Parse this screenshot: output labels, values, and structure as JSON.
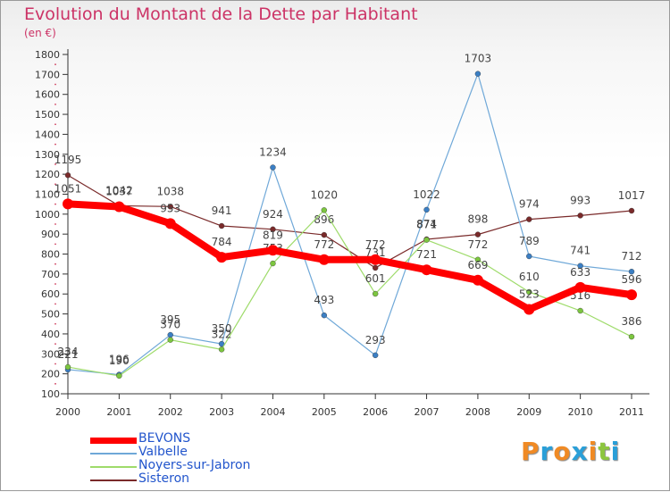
{
  "title": "Evolution du Montant de la Dette par Habitant",
  "unit": "(en €)",
  "logo_text": "Proxiti",
  "logo_colors": [
    "#f08a24",
    "#2a9fd8",
    "#f08a24",
    "#2a9fd8",
    "#f08a24",
    "#8dc63f",
    "#2a9fd8"
  ],
  "chart_data": {
    "type": "line",
    "x": [
      "2000",
      "2001",
      "2002",
      "2003",
      "2004",
      "2005",
      "2006",
      "2007",
      "2008",
      "2009",
      "2010",
      "2011"
    ],
    "ylim": [
      100,
      1800
    ],
    "yticks": [
      100,
      200,
      300,
      400,
      500,
      600,
      700,
      800,
      900,
      1000,
      1100,
      1200,
      1300,
      1400,
      1500,
      1600,
      1700,
      1800
    ],
    "grid": false,
    "legend_position": "bottom-left",
    "series": [
      {
        "name": "Sisteron",
        "color": "#7a2a2a",
        "line_width": 1.2,
        "values": [
          1195,
          1042,
          1038,
          941,
          924,
          896,
          731,
          874,
          898,
          974,
          993,
          1017
        ],
        "labels": [
          "1195",
          "1042",
          "1038",
          "941",
          "924",
          "896",
          "731",
          "874",
          "898",
          "974",
          "993",
          "1017"
        ]
      },
      {
        "name": "Valbelle",
        "color": "#6fa8d8",
        "marker": "#3b7fc4",
        "line_width": 1.2,
        "values": [
          221,
          196,
          395,
          350,
          1234,
          493,
          293,
          1022,
          1703,
          789,
          741,
          712
        ],
        "labels": [
          "221",
          "196",
          "395",
          "350",
          "1234",
          "493",
          "293",
          "1022",
          "1703",
          "789",
          "741",
          "712"
        ]
      },
      {
        "name": "Noyers-sur-Jabron",
        "color": "#9edb6a",
        "marker": "#7cc63f",
        "line_width": 1.2,
        "values": [
          234,
          190,
          370,
          322,
          753,
          1020,
          601,
          871,
          772,
          610,
          516,
          386
        ],
        "labels": [
          "234",
          "190",
          "370",
          "322",
          "753",
          "1020",
          "601",
          "871",
          "772",
          "610",
          "516",
          "386"
        ]
      },
      {
        "name": "BEVONS",
        "color": "#ff0000",
        "line_width": 8,
        "values": [
          1051,
          1037,
          953,
          784,
          819,
          772,
          772,
          721,
          669,
          523,
          633,
          596
        ],
        "labels": [
          "1051",
          "1037",
          "953",
          "784",
          "819",
          "772",
          "772",
          "721",
          "669",
          "523",
          "633",
          "596"
        ]
      }
    ],
    "legend": [
      "BEVONS",
      "Valbelle",
      "Noyers-sur-Jabron",
      "Sisteron"
    ]
  }
}
